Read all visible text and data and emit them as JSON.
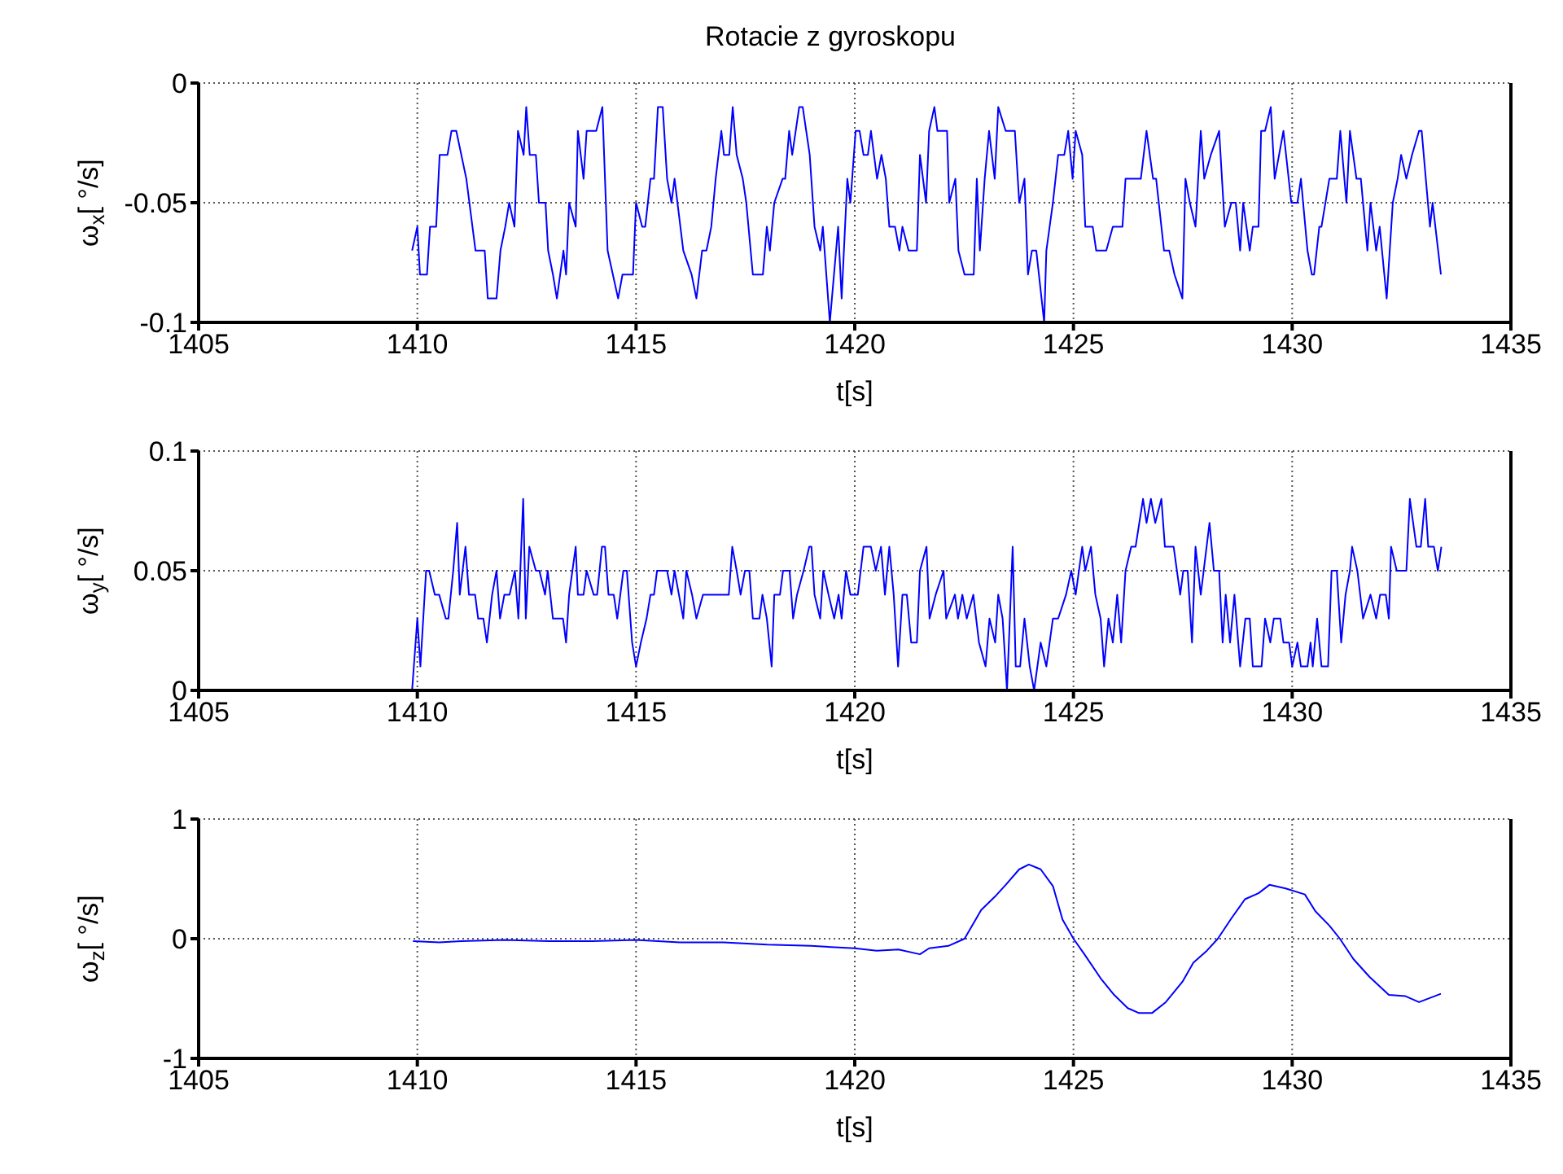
{
  "chart_data": [
    {
      "type": "line",
      "title": "Rotacie z gyroskopu",
      "xlabel": "t[s]",
      "ylabel": "ω$_{x}$[ °/s]",
      "xlim": [
        1405,
        1435
      ],
      "xticks": [
        1405,
        1410,
        1415,
        1420,
        1425,
        1430,
        1435
      ],
      "ylim": [
        -0.1,
        0
      ],
      "yticks": [
        -0.1,
        -0.05,
        0
      ],
      "grid": true,
      "series": [
        {
          "color": "#0000ff",
          "x": [
            1409.88,
            1410,
            1410.06,
            1410.22,
            1410.29,
            1410.43,
            1410.51,
            1410.69,
            1410.78,
            1410.89,
            1411.12,
            1411.33,
            1411.54,
            1411.61,
            1411.81,
            1411.9,
            1412.01,
            1412.1,
            1412.22,
            1412.3,
            1412.43,
            1412.49,
            1412.57,
            1412.71,
            1412.78,
            1412.93,
            1412.99,
            1413.1,
            1413.19,
            1413.34,
            1413.4,
            1413.47,
            1413.62,
            1413.67,
            1413.8,
            1413.87,
            1414.09,
            1414.23,
            1414.35,
            1414.47,
            1414.59,
            1414.69,
            1414.93,
            1415,
            1415.14,
            1415.21,
            1415.33,
            1415.41,
            1415.5,
            1415.61,
            1415.71,
            1415.81,
            1415.88,
            1416.08,
            1416.27,
            1416.38,
            1416.51,
            1416.61,
            1416.72,
            1416.82,
            1416.95,
            1417.01,
            1417.13,
            1417.21,
            1417.3,
            1417.44,
            1417.52,
            1417.67,
            1417.9,
            1417.99,
            1418.06,
            1418.16,
            1418.35,
            1418.41,
            1418.5,
            1418.57,
            1418.73,
            1418.81,
            1418.97,
            1419.08,
            1419.21,
            1419.27,
            1419.43,
            1419.62,
            1419.7,
            1419.83,
            1419.9,
            1420.02,
            1420.11,
            1420.2,
            1420.3,
            1420.37,
            1420.51,
            1420.61,
            1420.71,
            1420.79,
            1420.92,
            1421.02,
            1421.09,
            1421.23,
            1421.42,
            1421.49,
            1421.63,
            1421.7,
            1421.82,
            1421.89,
            1422.11,
            1422.16,
            1422.3,
            1422.37,
            1422.51,
            1422.72,
            1422.79,
            1422.86,
            1422.97,
            1423.07,
            1423.2,
            1423.28,
            1423.45,
            1423.66,
            1423.76,
            1423.88,
            1423.96,
            1424.05,
            1424.15,
            1424.33,
            1424.38,
            1424.53,
            1424.65,
            1424.79,
            1424.88,
            1424.98,
            1425.05,
            1425.2,
            1425.27,
            1425.44,
            1425.52,
            1425.75,
            1425.9,
            1426.12,
            1426.19,
            1426.54,
            1426.67,
            1426.82,
            1426.89,
            1427.07,
            1427.19,
            1427.31,
            1427.49,
            1427.56,
            1427.66,
            1427.79,
            1427.91,
            1427.99,
            1428.14,
            1428.33,
            1428.46,
            1428.61,
            1428.71,
            1428.81,
            1428.88,
            1429.03,
            1429.1,
            1429.23,
            1429.29,
            1429.38,
            1429.51,
            1429.6,
            1429.8,
            1429.98,
            1430.12,
            1430.2,
            1430.35,
            1430.45,
            1430.5,
            1430.62,
            1430.67,
            1430.85,
            1431.02,
            1431.1,
            1431.24,
            1431.32,
            1431.47,
            1431.57,
            1431.72,
            1431.79,
            1431.92,
            1432,
            1432.16,
            1432.3,
            1432.41,
            1432.49,
            1432.61,
            1432.74,
            1432.9,
            1432.96,
            1433.15,
            1433.21,
            1433.4
          ],
          "values": [
            -0.07,
            -0.06,
            -0.08,
            -0.08,
            -0.06,
            -0.06,
            -0.03,
            -0.03,
            -0.02,
            -0.02,
            -0.04,
            -0.07,
            -0.07,
            -0.09,
            -0.09,
            -0.07,
            -0.06,
            -0.05,
            -0.06,
            -0.02,
            -0.03,
            -0.01,
            -0.03,
            -0.03,
            -0.05,
            -0.05,
            -0.07,
            -0.08,
            -0.09,
            -0.07,
            -0.08,
            -0.05,
            -0.06,
            -0.02,
            -0.04,
            -0.02,
            -0.02,
            -0.01,
            -0.07,
            -0.08,
            -0.09,
            -0.08,
            -0.08,
            -0.05,
            -0.06,
            -0.06,
            -0.04,
            -0.04,
            -0.01,
            -0.01,
            -0.04,
            -0.05,
            -0.04,
            -0.07,
            -0.08,
            -0.09,
            -0.07,
            -0.07,
            -0.06,
            -0.04,
            -0.02,
            -0.03,
            -0.03,
            -0.01,
            -0.03,
            -0.04,
            -0.05,
            -0.08,
            -0.08,
            -0.06,
            -0.07,
            -0.05,
            -0.04,
            -0.04,
            -0.02,
            -0.03,
            -0.01,
            -0.01,
            -0.03,
            -0.06,
            -0.07,
            -0.06,
            -0.1,
            -0.06,
            -0.09,
            -0.04,
            -0.05,
            -0.02,
            -0.02,
            -0.03,
            -0.03,
            -0.02,
            -0.04,
            -0.03,
            -0.04,
            -0.06,
            -0.06,
            -0.07,
            -0.06,
            -0.07,
            -0.07,
            -0.03,
            -0.05,
            -0.02,
            -0.01,
            -0.02,
            -0.02,
            -0.05,
            -0.04,
            -0.07,
            -0.08,
            -0.08,
            -0.04,
            -0.07,
            -0.04,
            -0.02,
            -0.04,
            -0.01,
            -0.02,
            -0.02,
            -0.05,
            -0.04,
            -0.08,
            -0.07,
            -0.07,
            -0.1,
            -0.07,
            -0.05,
            -0.03,
            -0.03,
            -0.02,
            -0.04,
            -0.02,
            -0.03,
            -0.06,
            -0.06,
            -0.07,
            -0.07,
            -0.06,
            -0.06,
            -0.04,
            -0.04,
            -0.02,
            -0.04,
            -0.04,
            -0.07,
            -0.07,
            -0.08,
            -0.09,
            -0.04,
            -0.05,
            -0.06,
            -0.02,
            -0.04,
            -0.03,
            -0.02,
            -0.06,
            -0.05,
            -0.05,
            -0.07,
            -0.05,
            -0.07,
            -0.06,
            -0.06,
            -0.02,
            -0.02,
            -0.01,
            -0.04,
            -0.02,
            -0.05,
            -0.05,
            -0.04,
            -0.07,
            -0.08,
            -0.08,
            -0.06,
            -0.06,
            -0.04,
            -0.04,
            -0.02,
            -0.05,
            -0.02,
            -0.04,
            -0.04,
            -0.07,
            -0.05,
            -0.07,
            -0.06,
            -0.09,
            -0.05,
            -0.04,
            -0.03,
            -0.04,
            -0.03,
            -0.02,
            -0.02,
            -0.06,
            -0.05,
            -0.08
          ]
        }
      ]
    },
    {
      "type": "line",
      "xlabel": "t[s]",
      "ylabel": "ω$_{y}$[ °/s]",
      "xlim": [
        1405,
        1435
      ],
      "xticks": [
        1405,
        1410,
        1415,
        1420,
        1425,
        1430,
        1435
      ],
      "ylim": [
        0,
        0.1
      ],
      "yticks": [
        0,
        0.05,
        0.1
      ],
      "grid": true,
      "series": [
        {
          "color": "#0000ff",
          "x": [
            1409.88,
            1410,
            1410.07,
            1410.2,
            1410.27,
            1410.4,
            1410.5,
            1410.65,
            1410.71,
            1410.82,
            1410.91,
            1410.97,
            1411.1,
            1411.18,
            1411.32,
            1411.39,
            1411.51,
            1411.59,
            1411.71,
            1411.81,
            1411.89,
            1411.99,
            1412.11,
            1412.23,
            1412.31,
            1412.42,
            1412.48,
            1412.56,
            1412.71,
            1412.79,
            1412.92,
            1412.98,
            1413.1,
            1413.33,
            1413.4,
            1413.47,
            1413.62,
            1413.67,
            1413.8,
            1413.87,
            1414.03,
            1414.11,
            1414.22,
            1414.29,
            1414.37,
            1414.49,
            1414.57,
            1414.71,
            1414.79,
            1414.91,
            1415,
            1415.11,
            1415.24,
            1415.33,
            1415.41,
            1415.48,
            1415.71,
            1415.81,
            1415.88,
            1415.98,
            1416.08,
            1416.15,
            1416.28,
            1416.38,
            1416.53,
            1417.12,
            1417.2,
            1417.3,
            1417.39,
            1417.49,
            1417.59,
            1417.67,
            1417.82,
            1417.89,
            1417.99,
            1418.1,
            1418.16,
            1418.29,
            1418.36,
            1418.51,
            1418.59,
            1418.68,
            1418.83,
            1418.96,
            1419.01,
            1419.08,
            1419.21,
            1419.28,
            1419.4,
            1419.53,
            1419.63,
            1419.7,
            1419.8,
            1419.9,
            1420.07,
            1420.2,
            1420.37,
            1420.48,
            1420.6,
            1420.69,
            1420.79,
            1420.89,
            1420.99,
            1421.09,
            1421.19,
            1421.29,
            1421.42,
            1421.49,
            1421.64,
            1421.71,
            1421.85,
            1422.03,
            1422.09,
            1422.29,
            1422.36,
            1422.46,
            1422.56,
            1422.71,
            1422.84,
            1422.99,
            1423.08,
            1423.21,
            1423.28,
            1423.38,
            1423.48,
            1423.61,
            1423.68,
            1423.78,
            1423.88,
            1424,
            1424.1,
            1424.25,
            1424.38,
            1424.53,
            1424.65,
            1424.83,
            1424.95,
            1425.05,
            1425.2,
            1425.27,
            1425.4,
            1425.5,
            1425.62,
            1425.7,
            1425.8,
            1425.9,
            1426,
            1426.09,
            1426.19,
            1426.32,
            1426.42,
            1426.59,
            1426.67,
            1426.77,
            1426.87,
            1427.01,
            1427.09,
            1427.29,
            1427.44,
            1427.51,
            1427.61,
            1427.71,
            1427.79,
            1427.91,
            1428.11,
            1428.21,
            1428.33,
            1428.41,
            1428.48,
            1428.58,
            1428.68,
            1428.81,
            1428.93,
            1429.03,
            1429.1,
            1429.3,
            1429.38,
            1429.5,
            1429.58,
            1429.73,
            1429.8,
            1429.93,
            1430,
            1430.12,
            1430.2,
            1430.35,
            1430.42,
            1430.47,
            1430.57,
            1430.67,
            1430.82,
            1430.9,
            1431.02,
            1431.12,
            1431.22,
            1431.32,
            1431.37,
            1431.49,
            1431.62,
            1431.79,
            1431.92,
            1432.01,
            1432.14,
            1432.21,
            1432.26,
            1432.39,
            1432.61,
            1432.69,
            1432.84,
            1432.94,
            1433.04,
            1433.11,
            1433.24,
            1433.33,
            1433.41
          ],
          "values": [
            0,
            0.03,
            0.01,
            0.05,
            0.05,
            0.04,
            0.04,
            0.03,
            0.03,
            0.05,
            0.07,
            0.04,
            0.06,
            0.04,
            0.04,
            0.03,
            0.03,
            0.02,
            0.04,
            0.05,
            0.03,
            0.04,
            0.04,
            0.05,
            0.03,
            0.08,
            0.03,
            0.06,
            0.05,
            0.05,
            0.04,
            0.05,
            0.03,
            0.03,
            0.02,
            0.04,
            0.06,
            0.04,
            0.04,
            0.05,
            0.04,
            0.04,
            0.06,
            0.06,
            0.04,
            0.04,
            0.03,
            0.05,
            0.05,
            0.02,
            0.01,
            0.02,
            0.03,
            0.04,
            0.04,
            0.05,
            0.05,
            0.04,
            0.05,
            0.04,
            0.03,
            0.05,
            0.04,
            0.03,
            0.04,
            0.04,
            0.06,
            0.05,
            0.04,
            0.05,
            0.05,
            0.03,
            0.03,
            0.04,
            0.03,
            0.01,
            0.04,
            0.04,
            0.05,
            0.05,
            0.03,
            0.04,
            0.05,
            0.06,
            0.06,
            0.04,
            0.03,
            0.05,
            0.04,
            0.03,
            0.04,
            0.03,
            0.05,
            0.04,
            0.04,
            0.06,
            0.06,
            0.05,
            0.06,
            0.04,
            0.06,
            0.04,
            0.01,
            0.04,
            0.04,
            0.02,
            0.02,
            0.05,
            0.06,
            0.03,
            0.04,
            0.05,
            0.03,
            0.04,
            0.03,
            0.04,
            0.03,
            0.04,
            0.02,
            0.01,
            0.03,
            0.02,
            0.04,
            0.03,
            0,
            0.06,
            0.01,
            0.01,
            0.03,
            0.01,
            0,
            0.02,
            0.01,
            0.03,
            0.03,
            0.04,
            0.05,
            0.04,
            0.06,
            0.05,
            0.06,
            0.04,
            0.03,
            0.01,
            0.03,
            0.02,
            0.04,
            0.02,
            0.05,
            0.06,
            0.06,
            0.08,
            0.07,
            0.08,
            0.07,
            0.08,
            0.06,
            0.06,
            0.04,
            0.05,
            0.05,
            0.02,
            0.06,
            0.04,
            0.07,
            0.05,
            0.05,
            0.02,
            0.04,
            0.02,
            0.04,
            0.01,
            0.03,
            0.03,
            0.01,
            0.01,
            0.03,
            0.02,
            0.03,
            0.03,
            0.02,
            0.02,
            0.01,
            0.02,
            0.01,
            0.01,
            0.02,
            0.01,
            0.03,
            0.01,
            0.01,
            0.05,
            0.05,
            0.02,
            0.04,
            0.05,
            0.06,
            0.05,
            0.03,
            0.04,
            0.03,
            0.04,
            0.04,
            0.03,
            0.06,
            0.05,
            0.05,
            0.08,
            0.06,
            0.06,
            0.08,
            0.06,
            0.06,
            0.05,
            0.06
          ]
        }
      ]
    },
    {
      "type": "line",
      "xlabel": "t[s]",
      "ylabel": "ω$_{z}$[ °/s]",
      "xlim": [
        1405,
        1435
      ],
      "xticks": [
        1405,
        1410,
        1415,
        1420,
        1425,
        1430,
        1435
      ],
      "ylim": [
        -1,
        1
      ],
      "yticks": [
        -1,
        0,
        1
      ],
      "grid": true,
      "series": [
        {
          "color": "#0000ff",
          "x": [
            1409.9,
            1410.5,
            1411,
            1412,
            1413,
            1414,
            1415,
            1416,
            1417,
            1418,
            1419,
            1420,
            1420.5,
            1421,
            1421.49,
            1421.7,
            1422.14,
            1422.51,
            1422.89,
            1423.2,
            1423.45,
            1423.76,
            1423.98,
            1424.25,
            1424.53,
            1424.75,
            1425,
            1425.25,
            1425.62,
            1425.93,
            1426.24,
            1426.49,
            1426.8,
            1427.11,
            1427.49,
            1427.74,
            1428.05,
            1428.3,
            1428.61,
            1428.92,
            1429.23,
            1429.48,
            1429.85,
            1430.29,
            1430.53,
            1430.85,
            1431.09,
            1431.4,
            1431.77,
            1432.21,
            1432.59,
            1432.9,
            1433.4
          ],
          "values": [
            -0.02,
            -0.03,
            -0.02,
            -0.01,
            -0.02,
            -0.02,
            -0.01,
            -0.03,
            -0.03,
            -0.05,
            -0.06,
            -0.08,
            -0.1,
            -0.09,
            -0.13,
            -0.08,
            -0.06,
            0,
            0.24,
            0.35,
            0.45,
            0.58,
            0.62,
            0.58,
            0.44,
            0.16,
            0,
            -0.13,
            -0.33,
            -0.47,
            -0.58,
            -0.62,
            -0.62,
            -0.53,
            -0.36,
            -0.2,
            -0.1,
            0,
            0.17,
            0.33,
            0.38,
            0.45,
            0.42,
            0.37,
            0.23,
            0.11,
            0,
            -0.17,
            -0.32,
            -0.47,
            -0.48,
            -0.53,
            -0.46
          ]
        }
      ]
    }
  ]
}
